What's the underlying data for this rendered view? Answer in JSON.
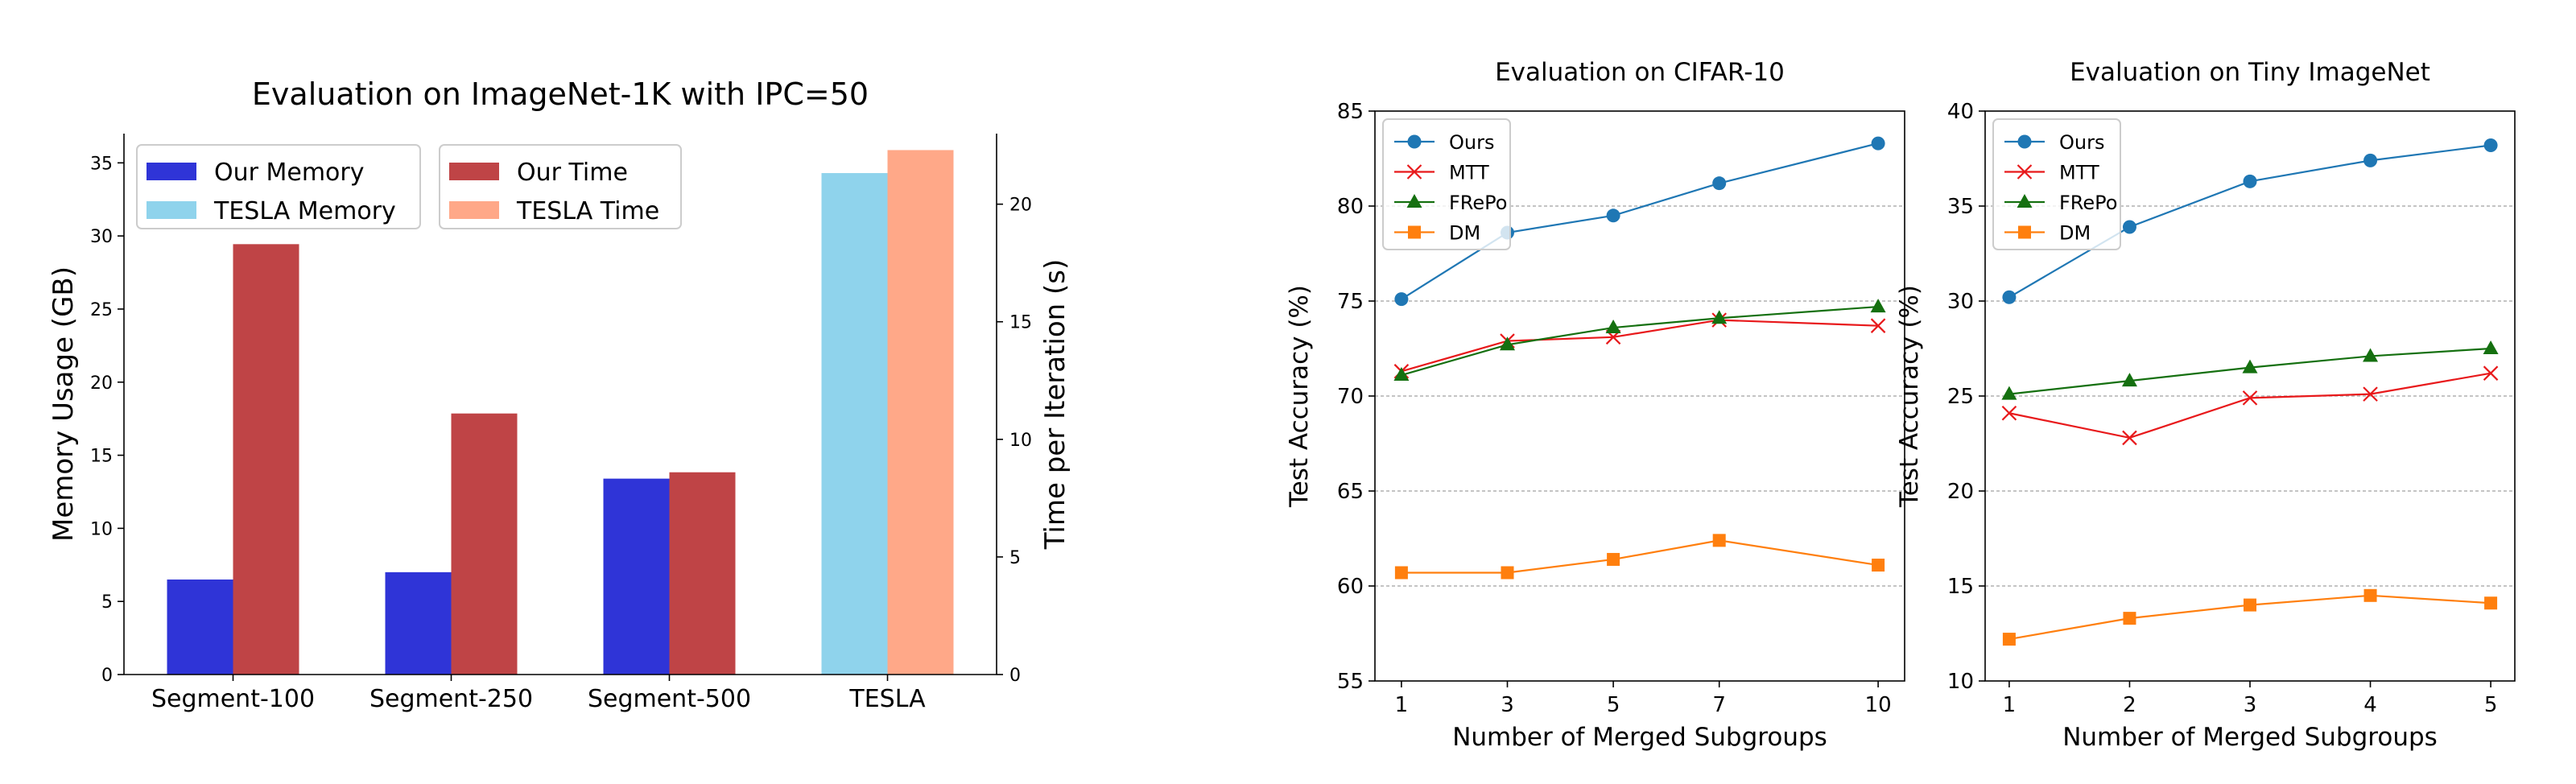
{
  "chart_data": [
    {
      "type": "bar",
      "title": "Evaluation on ImageNet-1K with IPC=50",
      "ylabel": "Memory Usage (GB)",
      "y2label": "Time per Iteration (s)",
      "categories": [
        "Segment-100",
        "Segment-250",
        "Segment-500",
        "TESLA"
      ],
      "ylim": [
        0,
        37
      ],
      "y2lim": [
        0,
        23
      ],
      "yticks": [
        0,
        5,
        10,
        15,
        20,
        25,
        30,
        35
      ],
      "y2ticks": [
        0,
        5,
        10,
        15,
        20
      ],
      "series": [
        {
          "name": "Our Memory",
          "axis": "left",
          "color": "#2f34d7",
          "values": [
            6.5,
            7.0,
            13.4,
            null
          ]
        },
        {
          "name": "TESLA Memory",
          "axis": "left",
          "color": "#8fd3ec",
          "values": [
            null,
            null,
            null,
            34.3
          ]
        },
        {
          "name": "Our Time",
          "axis": "right",
          "color": "#bf4446",
          "values": [
            18.3,
            11.1,
            8.6,
            null
          ]
        },
        {
          "name": "TESLA Time",
          "axis": "right",
          "color": "#ffa888",
          "values": [
            null,
            null,
            null,
            22.3
          ]
        }
      ],
      "legend": "top-left, two boxes"
    },
    {
      "type": "line",
      "title": "Evaluation on CIFAR-10",
      "xlabel": "Number of Merged Subgroups",
      "ylabel": "Test Accuracy (%)",
      "x": [
        1,
        3,
        5,
        7,
        10
      ],
      "xticks": [
        1,
        3,
        5,
        7,
        10
      ],
      "xlim": [
        0.5,
        10.5
      ],
      "ylim": [
        55,
        85
      ],
      "yticks": [
        55,
        60,
        65,
        70,
        75,
        80,
        85
      ],
      "grid": "horizontal dotted",
      "legend": "top-left",
      "series": [
        {
          "name": "Ours",
          "color": "#1f77b4",
          "marker": "circle",
          "values": [
            75.1,
            78.6,
            79.5,
            81.2,
            83.3
          ]
        },
        {
          "name": "MTT",
          "color": "#e8191b",
          "marker": "x",
          "values": [
            71.3,
            72.9,
            73.1,
            74.0,
            73.7
          ]
        },
        {
          "name": "FRePo",
          "color": "#157010",
          "marker": "triangle",
          "values": [
            71.1,
            72.7,
            73.6,
            74.1,
            74.7
          ]
        },
        {
          "name": "DM",
          "color": "#ff7f0e",
          "marker": "square",
          "values": [
            60.7,
            60.7,
            61.4,
            62.4,
            61.1
          ]
        }
      ]
    },
    {
      "type": "line",
      "title": "Evaluation on Tiny ImageNet",
      "xlabel": "Number of Merged Subgroups",
      "ylabel": "Test Accuracy (%)",
      "x": [
        1,
        2,
        3,
        4,
        5
      ],
      "xticks": [
        1,
        2,
        3,
        4,
        5
      ],
      "xlim": [
        0.8,
        5.2
      ],
      "ylim": [
        10,
        40
      ],
      "yticks": [
        10,
        15,
        20,
        25,
        30,
        35,
        40
      ],
      "grid": "horizontal dotted",
      "legend": "top-left",
      "series": [
        {
          "name": "Ours",
          "color": "#1f77b4",
          "marker": "circle",
          "values": [
            30.2,
            33.9,
            36.3,
            37.4,
            38.2
          ]
        },
        {
          "name": "MTT",
          "color": "#e8191b",
          "marker": "x",
          "values": [
            24.1,
            22.8,
            24.9,
            25.1,
            26.2
          ]
        },
        {
          "name": "FRePo",
          "color": "#157010",
          "marker": "triangle",
          "values": [
            25.1,
            25.8,
            26.5,
            27.1,
            27.5
          ]
        },
        {
          "name": "DM",
          "color": "#ff7f0e",
          "marker": "square",
          "values": [
            12.2,
            13.3,
            14.0,
            14.5,
            14.1
          ]
        }
      ]
    }
  ]
}
